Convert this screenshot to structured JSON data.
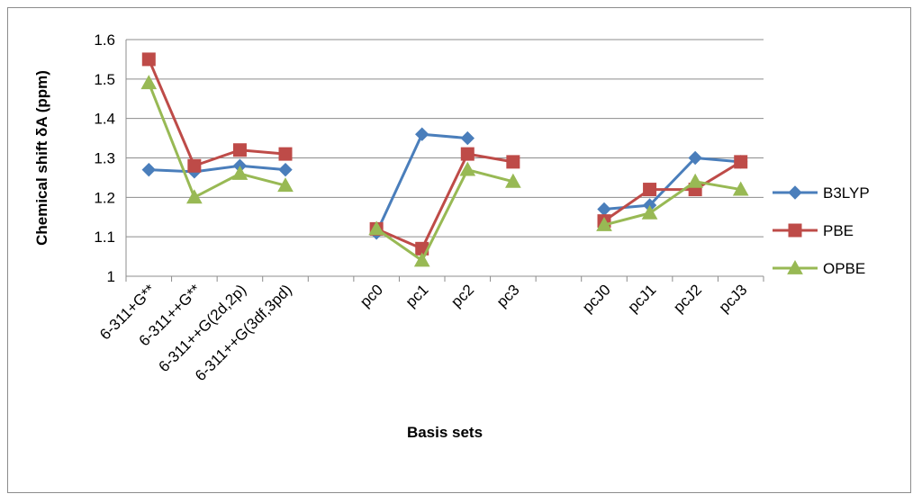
{
  "chart_data": {
    "type": "line",
    "xlabel": "Basis sets",
    "ylabel": "Chemical shift δA (ppm)",
    "ylim": [
      1,
      1.6
    ],
    "yticks": [
      "1",
      "1.1",
      "1.2",
      "1.3",
      "1.4",
      "1.5",
      "1.6"
    ],
    "categories": [
      "6-311+G**",
      "6-311++G**",
      "6-311++G(2d,2p)",
      "6-311++G(3df,3pd)",
      "",
      "pc0",
      "pc1",
      "pc2",
      "pc3",
      "",
      "pcJ0",
      "pcJ1",
      "pcJ2",
      "pcJ3"
    ],
    "grid": "horizontal",
    "legend_position": "right",
    "series": [
      {
        "name": "B3LYP",
        "color": "#4a7ebb",
        "marker": "diamond",
        "values": [
          1.27,
          1.265,
          1.28,
          1.27,
          null,
          1.11,
          1.36,
          1.35,
          null,
          null,
          1.17,
          1.18,
          1.3,
          1.29
        ]
      },
      {
        "name": "PBE",
        "color": "#be4b48",
        "marker": "square",
        "values": [
          1.55,
          1.28,
          1.32,
          1.31,
          null,
          1.12,
          1.07,
          1.31,
          1.29,
          null,
          1.14,
          1.22,
          1.22,
          1.29
        ]
      },
      {
        "name": "OPBE",
        "color": "#98b954",
        "marker": "triangle",
        "values": [
          1.49,
          1.2,
          1.26,
          1.23,
          null,
          1.12,
          1.04,
          1.27,
          1.24,
          null,
          1.13,
          1.16,
          1.24,
          1.22
        ]
      }
    ]
  }
}
